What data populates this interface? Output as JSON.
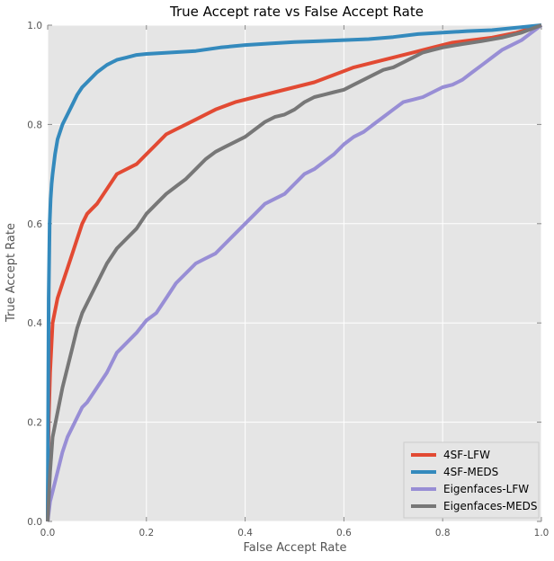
{
  "chart_data": {
    "type": "line",
    "title": "True Accept rate vs False Accept Rate",
    "xlabel": "False Accept Rate",
    "ylabel": "True Accept Rate",
    "xlim": [
      0,
      1
    ],
    "ylim": [
      0,
      1
    ],
    "xticks": [
      "0.0",
      "0.2",
      "0.4",
      "0.6",
      "0.8",
      "1.0"
    ],
    "yticks": [
      "0.0",
      "0.2",
      "0.4",
      "0.6",
      "0.8",
      "1.0"
    ],
    "grid": true,
    "legend_position": "bottom-right",
    "series": [
      {
        "name": "4SF-LFW",
        "color": "#e24a33",
        "x": [
          0,
          0.002,
          0.005,
          0.01,
          0.02,
          0.03,
          0.04,
          0.05,
          0.06,
          0.07,
          0.08,
          0.09,
          0.1,
          0.12,
          0.14,
          0.16,
          0.18,
          0.2,
          0.22,
          0.24,
          0.26,
          0.28,
          0.3,
          0.34,
          0.38,
          0.42,
          0.46,
          0.5,
          0.54,
          0.58,
          0.62,
          0.66,
          0.7,
          0.74,
          0.78,
          0.82,
          0.86,
          0.9,
          0.95,
          1.0
        ],
        "y": [
          0,
          0.2,
          0.3,
          0.4,
          0.45,
          0.48,
          0.51,
          0.54,
          0.57,
          0.6,
          0.62,
          0.63,
          0.64,
          0.67,
          0.7,
          0.71,
          0.72,
          0.74,
          0.76,
          0.78,
          0.79,
          0.8,
          0.81,
          0.83,
          0.845,
          0.855,
          0.865,
          0.875,
          0.885,
          0.9,
          0.915,
          0.925,
          0.935,
          0.945,
          0.955,
          0.965,
          0.97,
          0.975,
          0.985,
          1.0
        ]
      },
      {
        "name": "4SF-MEDS",
        "color": "#348abd",
        "x": [
          0,
          0.002,
          0.004,
          0.006,
          0.008,
          0.01,
          0.015,
          0.02,
          0.03,
          0.04,
          0.05,
          0.06,
          0.07,
          0.08,
          0.1,
          0.12,
          0.14,
          0.16,
          0.18,
          0.2,
          0.25,
          0.3,
          0.35,
          0.4,
          0.45,
          0.5,
          0.55,
          0.6,
          0.65,
          0.7,
          0.75,
          0.8,
          0.85,
          0.9,
          0.95,
          1.0
        ],
        "y": [
          0,
          0.45,
          0.6,
          0.65,
          0.68,
          0.7,
          0.74,
          0.77,
          0.8,
          0.82,
          0.84,
          0.86,
          0.875,
          0.885,
          0.905,
          0.92,
          0.93,
          0.935,
          0.94,
          0.942,
          0.945,
          0.948,
          0.955,
          0.96,
          0.963,
          0.966,
          0.968,
          0.97,
          0.972,
          0.976,
          0.982,
          0.985,
          0.988,
          0.99,
          0.995,
          1.0
        ]
      },
      {
        "name": "Eigenfaces-LFW",
        "color": "#988ed5",
        "x": [
          0,
          0.005,
          0.01,
          0.02,
          0.03,
          0.04,
          0.05,
          0.06,
          0.07,
          0.08,
          0.1,
          0.12,
          0.14,
          0.16,
          0.18,
          0.2,
          0.22,
          0.24,
          0.26,
          0.28,
          0.3,
          0.32,
          0.34,
          0.36,
          0.38,
          0.4,
          0.42,
          0.44,
          0.46,
          0.48,
          0.5,
          0.52,
          0.54,
          0.56,
          0.58,
          0.6,
          0.62,
          0.64,
          0.66,
          0.68,
          0.7,
          0.72,
          0.74,
          0.76,
          0.78,
          0.8,
          0.82,
          0.84,
          0.86,
          0.88,
          0.9,
          0.92,
          0.94,
          0.96,
          0.98,
          1.0
        ],
        "y": [
          0,
          0.04,
          0.06,
          0.1,
          0.14,
          0.17,
          0.19,
          0.21,
          0.23,
          0.24,
          0.27,
          0.3,
          0.34,
          0.36,
          0.38,
          0.405,
          0.42,
          0.45,
          0.48,
          0.5,
          0.52,
          0.53,
          0.54,
          0.56,
          0.58,
          0.6,
          0.62,
          0.64,
          0.65,
          0.66,
          0.68,
          0.7,
          0.71,
          0.725,
          0.74,
          0.76,
          0.775,
          0.785,
          0.8,
          0.815,
          0.83,
          0.845,
          0.85,
          0.855,
          0.865,
          0.875,
          0.88,
          0.89,
          0.905,
          0.92,
          0.935,
          0.95,
          0.96,
          0.97,
          0.985,
          1.0
        ]
      },
      {
        "name": "Eigenfaces-MEDS",
        "color": "#777777",
        "x": [
          0,
          0.005,
          0.01,
          0.02,
          0.03,
          0.04,
          0.05,
          0.06,
          0.07,
          0.08,
          0.1,
          0.12,
          0.14,
          0.16,
          0.18,
          0.2,
          0.22,
          0.24,
          0.26,
          0.28,
          0.3,
          0.32,
          0.34,
          0.36,
          0.38,
          0.4,
          0.42,
          0.44,
          0.46,
          0.48,
          0.5,
          0.52,
          0.54,
          0.56,
          0.58,
          0.6,
          0.62,
          0.64,
          0.66,
          0.68,
          0.7,
          0.72,
          0.74,
          0.76,
          0.78,
          0.8,
          0.84,
          0.88,
          0.92,
          0.96,
          1.0
        ],
        "y": [
          0,
          0.1,
          0.17,
          0.22,
          0.27,
          0.31,
          0.35,
          0.39,
          0.42,
          0.44,
          0.48,
          0.52,
          0.55,
          0.57,
          0.59,
          0.62,
          0.64,
          0.66,
          0.675,
          0.69,
          0.71,
          0.73,
          0.745,
          0.755,
          0.765,
          0.775,
          0.79,
          0.805,
          0.815,
          0.82,
          0.83,
          0.845,
          0.855,
          0.86,
          0.865,
          0.87,
          0.88,
          0.89,
          0.9,
          0.91,
          0.915,
          0.925,
          0.935,
          0.945,
          0.95,
          0.955,
          0.962,
          0.968,
          0.975,
          0.985,
          1.0
        ]
      }
    ]
  }
}
